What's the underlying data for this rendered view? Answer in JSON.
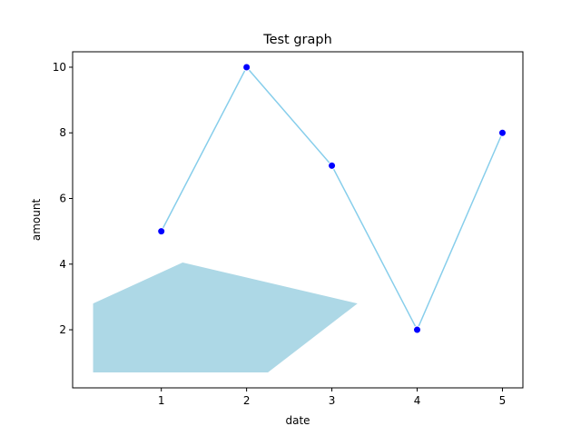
{
  "chart_data": {
    "type": "line",
    "title": "Test graph",
    "x_label": "date",
    "y_label": "amount",
    "x": [
      1,
      2,
      3,
      4,
      5
    ],
    "series": [
      {
        "values": [
          5,
          10,
          7,
          2,
          8
        ],
        "color": "#87ceeb",
        "marker_color": "#0000ff"
      }
    ],
    "polygon": {
      "x": [
        0.2,
        1.25,
        3.3,
        2.25,
        0.2
      ],
      "y": [
        2.8,
        4.05,
        2.8,
        0.7,
        0.7
      ],
      "color": "#add8e6"
    },
    "xlim": [
      -0.04,
      5.24
    ],
    "ylim": [
      0.23,
      10.47
    ],
    "xticks": [
      1,
      2,
      3,
      4,
      5
    ],
    "yticks": [
      2,
      4,
      6,
      8,
      10
    ],
    "grid": false
  }
}
